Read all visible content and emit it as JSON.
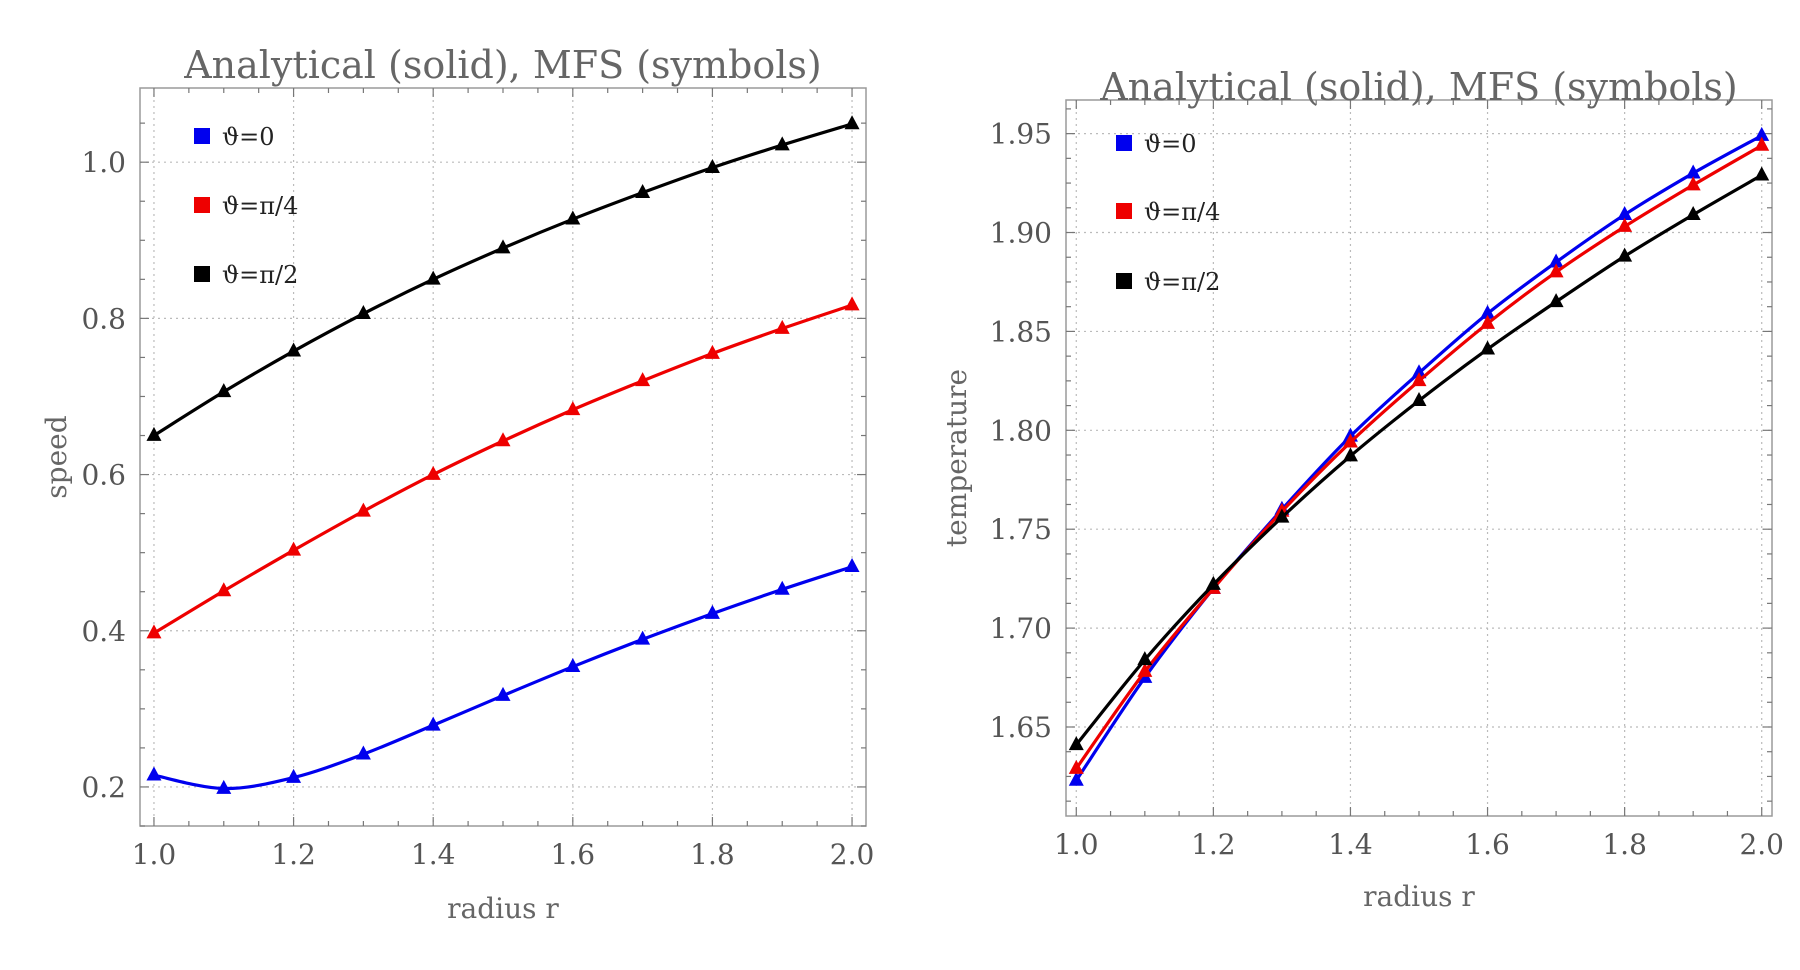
{
  "chart_data": [
    {
      "type": "line",
      "title": "Analytical (solid), MFS (symbols)",
      "xlabel": "radius r",
      "ylabel": "speed",
      "xlim": [
        0.98,
        2.02
      ],
      "ylim": [
        0.15,
        1.095
      ],
      "xticks": [
        1.0,
        1.2,
        1.4,
        1.6,
        1.8,
        2.0
      ],
      "yticks": [
        0.2,
        0.4,
        0.6,
        0.8,
        1.0
      ],
      "xtick_labels": [
        "1.0",
        "1.2",
        "1.4",
        "1.6",
        "1.8",
        "2.0"
      ],
      "ytick_labels": [
        "0.2",
        "0.4",
        "0.6",
        "0.8",
        "1.0"
      ],
      "grid": true,
      "legend_position": "top-left",
      "x": [
        1.0,
        1.1,
        1.2,
        1.3,
        1.4,
        1.5,
        1.6,
        1.7,
        1.8,
        1.9,
        2.0
      ],
      "series": [
        {
          "name": "ϑ=0",
          "color": "#0000ee",
          "marker": "triangle",
          "values": [
            0.215,
            0.198,
            0.212,
            0.242,
            0.279,
            0.317,
            0.354,
            0.389,
            0.422,
            0.453,
            0.482
          ]
        },
        {
          "name": "ϑ=π/4",
          "color": "#ee0000",
          "marker": "triangle",
          "values": [
            0.397,
            0.451,
            0.503,
            0.553,
            0.6,
            0.643,
            0.683,
            0.72,
            0.755,
            0.787,
            0.817
          ]
        },
        {
          "name": "ϑ=π/2",
          "color": "#000000",
          "marker": "triangle",
          "values": [
            0.65,
            0.706,
            0.758,
            0.806,
            0.85,
            0.89,
            0.927,
            0.961,
            0.993,
            1.022,
            1.049
          ]
        }
      ]
    },
    {
      "type": "line",
      "title": "Analytical (solid), MFS (symbols)",
      "xlabel": "radius r",
      "ylabel": "temperature",
      "xlim": [
        0.985,
        2.015
      ],
      "ylim": [
        1.605,
        1.967
      ],
      "xticks": [
        1.0,
        1.2,
        1.4,
        1.6,
        1.8,
        2.0
      ],
      "yticks": [
        1.65,
        1.7,
        1.75,
        1.8,
        1.85,
        1.9,
        1.95
      ],
      "xtick_labels": [
        "1.0",
        "1.2",
        "1.4",
        "1.6",
        "1.8",
        "2.0"
      ],
      "ytick_labels": [
        "1.65",
        "1.70",
        "1.75",
        "1.80",
        "1.85",
        "1.90",
        "1.95"
      ],
      "grid": true,
      "legend_position": "top-left",
      "x": [
        1.0,
        1.1,
        1.2,
        1.3,
        1.4,
        1.5,
        1.6,
        1.7,
        1.8,
        1.9,
        2.0
      ],
      "series": [
        {
          "name": "ϑ=0",
          "color": "#0000ee",
          "marker": "triangle",
          "values": [
            1.623,
            1.675,
            1.72,
            1.76,
            1.797,
            1.829,
            1.859,
            1.885,
            1.909,
            1.93,
            1.949
          ]
        },
        {
          "name": "ϑ=π/4",
          "color": "#ee0000",
          "marker": "triangle",
          "values": [
            1.629,
            1.678,
            1.72,
            1.759,
            1.794,
            1.825,
            1.854,
            1.88,
            1.903,
            1.924,
            1.944
          ]
        },
        {
          "name": "ϑ=π/2",
          "color": "#000000",
          "marker": "triangle",
          "values": [
            1.641,
            1.684,
            1.722,
            1.756,
            1.787,
            1.815,
            1.841,
            1.865,
            1.888,
            1.909,
            1.929
          ]
        }
      ]
    }
  ]
}
